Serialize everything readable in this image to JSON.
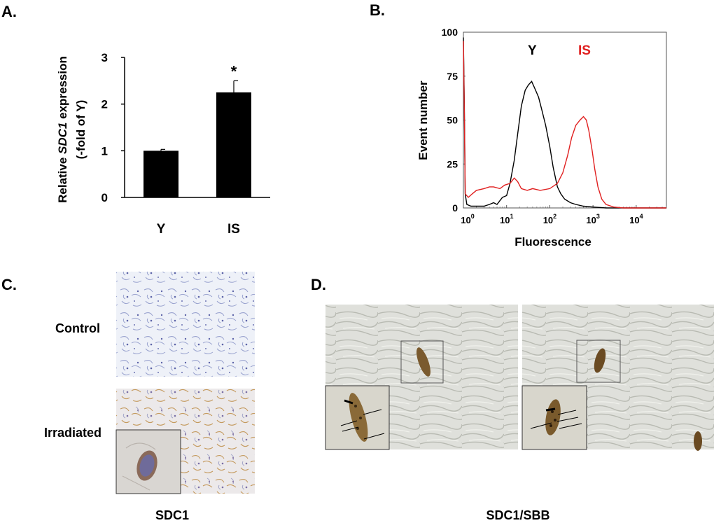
{
  "panels": {
    "a": "A.",
    "b": "B.",
    "c": "C.",
    "d": "D."
  },
  "chart_data": [
    {
      "type": "bar",
      "panel": "A.",
      "categories": [
        "Y",
        "IS"
      ],
      "values": [
        1.0,
        2.25
      ],
      "errors": [
        0.03,
        0.25
      ],
      "significance": [
        "",
        "*"
      ],
      "ylabel_part1": "Relative ",
      "ylabel_gene": "SDC1",
      "ylabel_part2": " expression",
      "ylabel_line2": "(-fold of Y)",
      "ylim": [
        0,
        3
      ],
      "yticks": [
        "0",
        "1",
        "2",
        "3"
      ],
      "bar_color": "#000000"
    },
    {
      "type": "line",
      "panel": "B.",
      "xlabel": "Fluorescence",
      "ylabel": "Event number",
      "xscale": "log",
      "xlim": [
        1,
        50000
      ],
      "ylim": [
        0,
        100
      ],
      "xticks": [
        {
          "value": 1,
          "base": "10",
          "exp": "0"
        },
        {
          "value": 10,
          "base": "10",
          "exp": "1"
        },
        {
          "value": 100,
          "base": "10",
          "exp": "2"
        },
        {
          "value": 1000,
          "base": "10",
          "exp": "3"
        },
        {
          "value": 10000,
          "base": "10",
          "exp": "4"
        }
      ],
      "yticks": [
        "0",
        "25",
        "50",
        "75",
        "100"
      ],
      "series": [
        {
          "name": "Y",
          "color": "#000000",
          "points": [
            [
              1,
              97
            ],
            [
              1.05,
              60
            ],
            [
              1.1,
              8
            ],
            [
              1.2,
              2
            ],
            [
              1.5,
              1
            ],
            [
              2,
              1
            ],
            [
              3,
              1
            ],
            [
              4,
              2
            ],
            [
              5,
              3
            ],
            [
              6,
              2
            ],
            [
              8,
              6
            ],
            [
              10,
              7
            ],
            [
              12,
              14
            ],
            [
              15,
              27
            ],
            [
              18,
              42
            ],
            [
              22,
              58
            ],
            [
              27,
              67
            ],
            [
              32,
              70
            ],
            [
              38,
              72
            ],
            [
              45,
              68
            ],
            [
              55,
              63
            ],
            [
              65,
              56
            ],
            [
              80,
              47
            ],
            [
              100,
              35
            ],
            [
              120,
              23
            ],
            [
              150,
              12
            ],
            [
              180,
              8
            ],
            [
              220,
              5
            ],
            [
              300,
              3
            ],
            [
              400,
              2
            ],
            [
              600,
              1
            ],
            [
              1000,
              0.5
            ],
            [
              2000,
              0
            ],
            [
              50000,
              0
            ]
          ]
        },
        {
          "name": "IS",
          "color": "#e02020",
          "points": [
            [
              1,
              95
            ],
            [
              1.05,
              55
            ],
            [
              1.1,
              8
            ],
            [
              1.3,
              6
            ],
            [
              1.6,
              8
            ],
            [
              2,
              10
            ],
            [
              3,
              11
            ],
            [
              4,
              12
            ],
            [
              5,
              12
            ],
            [
              7,
              11
            ],
            [
              9,
              13
            ],
            [
              12,
              14
            ],
            [
              15,
              17
            ],
            [
              18,
              15
            ],
            [
              22,
              11
            ],
            [
              30,
              10
            ],
            [
              40,
              11
            ],
            [
              60,
              10
            ],
            [
              100,
              11
            ],
            [
              150,
              14
            ],
            [
              200,
              20
            ],
            [
              260,
              30
            ],
            [
              320,
              40
            ],
            [
              400,
              47
            ],
            [
              500,
              50
            ],
            [
              600,
              52
            ],
            [
              700,
              50
            ],
            [
              800,
              44
            ],
            [
              950,
              33
            ],
            [
              1100,
              22
            ],
            [
              1300,
              12
            ],
            [
              1600,
              5
            ],
            [
              2000,
              2
            ],
            [
              3000,
              0.5
            ],
            [
              5000,
              0
            ],
            [
              50000,
              0
            ]
          ]
        }
      ]
    }
  ],
  "panel_c": {
    "rows": [
      "Control",
      "Irradiated"
    ],
    "caption": "SDC1"
  },
  "panel_d": {
    "caption": "SDC1/SBB"
  }
}
